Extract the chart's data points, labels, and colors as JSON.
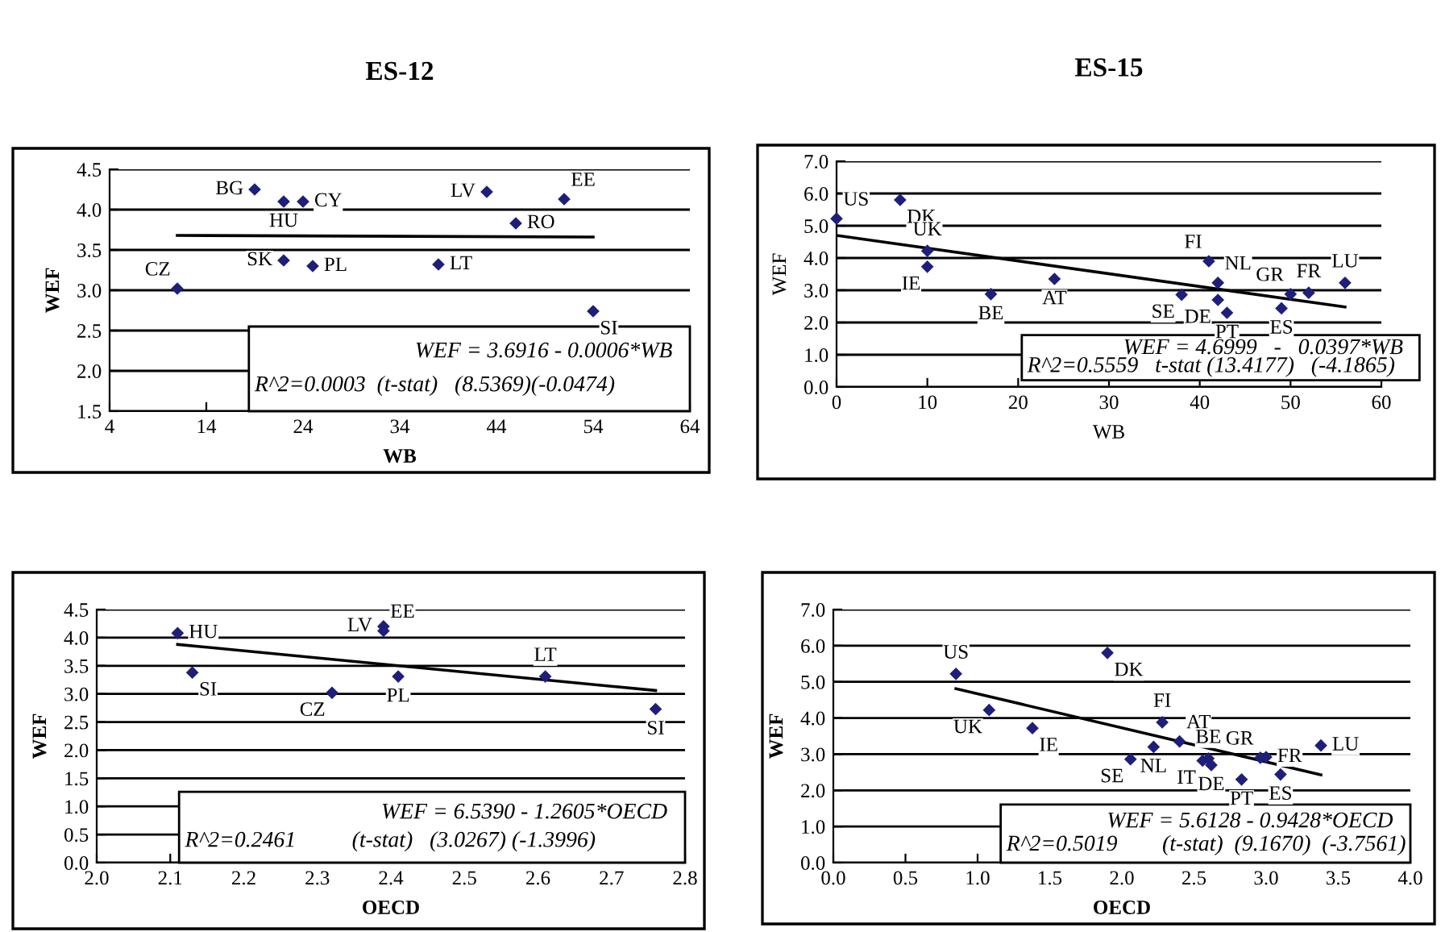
{
  "chart_data": [
    {
      "type": "scatter",
      "title": "ES-12",
      "xlabel": "WB",
      "ylabel": "WEF",
      "grid": "y",
      "legend": false,
      "xlim": [
        4,
        64
      ],
      "xticks": [
        4,
        14,
        24,
        34,
        44,
        54,
        64
      ],
      "ylim": [
        1.5,
        4.5
      ],
      "yticks": [
        1.5,
        {
          "value": 2,
          "label": "2.0"
        },
        2.5,
        {
          "value": 3,
          "label": "3.0"
        },
        3.5,
        {
          "value": 4,
          "label": "4.0"
        },
        4.5
      ],
      "series": [
        {
          "type": "scatter",
          "marker": "diamond",
          "color": "#1f1f7a",
          "x": [
            19,
            22,
            24,
            43,
            51,
            46,
            22,
            25,
            38,
            11,
            54
          ],
          "values": [
            4.25,
            4.1,
            4.1,
            4.22,
            4.13,
            3.83,
            3.37,
            3.3,
            3.32,
            3.02,
            2.74
          ]
        },
        {
          "type": "line",
          "color": "#000000",
          "x": [
            11,
            54
          ],
          "values": [
            3.68,
            3.66
          ]
        }
      ],
      "annotations": [
        {
          "text": "BG",
          "x": 19,
          "y": 4.25
        },
        {
          "text": "HU",
          "x": 22,
          "y": 4.1
        },
        {
          "text": "CY",
          "x": 24,
          "y": 4.1
        },
        {
          "text": "LV",
          "x": 43,
          "y": 4.22
        },
        {
          "text": "EE",
          "x": 51,
          "y": 4.13
        },
        {
          "text": "RO",
          "x": 46,
          "y": 3.83
        },
        {
          "text": "SK",
          "x": 22,
          "y": 3.37
        },
        {
          "text": "PL",
          "x": 25,
          "y": 3.3
        },
        {
          "text": "LT",
          "x": 38,
          "y": 3.32
        },
        {
          "text": "CZ",
          "x": 11,
          "y": 3.02
        },
        {
          "text": "SI",
          "x": 54,
          "y": 2.74
        },
        "WEF = 3.6916 - 0.0006*WB",
        "R^2=0.0003  (t-stat)   (8.5369)(-0.0474)"
      ]
    },
    {
      "type": "scatter",
      "title": "ES-15",
      "xlabel": "WB",
      "ylabel": "WEF",
      "grid": "y",
      "legend": false,
      "xlim": [
        0,
        60
      ],
      "xticks": [
        0,
        10,
        20,
        30,
        40,
        50,
        60
      ],
      "ylim": [
        0,
        7
      ],
      "yticks": [
        {
          "value": 0,
          "label": "0.0"
        },
        {
          "value": 1,
          "label": "1.0"
        },
        {
          "value": 2,
          "label": "2.0"
        },
        {
          "value": 3,
          "label": "3.0"
        },
        {
          "value": 4,
          "label": "4.0"
        },
        {
          "value": 5,
          "label": "5.0"
        },
        {
          "value": 6,
          "label": "6.0"
        },
        {
          "value": 7,
          "label": "7.0"
        }
      ],
      "series": [
        {
          "type": "scatter",
          "marker": "diamond",
          "color": "#1f1f7a",
          "x": [
            0,
            7,
            10,
            10,
            17,
            24,
            38,
            41,
            42,
            42,
            43,
            49,
            50,
            52,
            56
          ],
          "values": [
            5.22,
            5.8,
            4.22,
            3.73,
            2.88,
            3.35,
            2.86,
            3.9,
            3.23,
            2.7,
            2.3,
            2.44,
            2.88,
            2.92,
            3.23
          ]
        },
        {
          "type": "line",
          "color": "#000000",
          "x": [
            0,
            56
          ],
          "values": [
            4.7,
            2.48
          ]
        }
      ],
      "annotations": [
        {
          "text": "US",
          "x": 0,
          "y": 5.22
        },
        {
          "text": "DK",
          "x": 7,
          "y": 5.8
        },
        {
          "text": "UK",
          "x": 10,
          "y": 4.22
        },
        {
          "text": "IE",
          "x": 10,
          "y": 3.73
        },
        {
          "text": "BE",
          "x": 17,
          "y": 2.88
        },
        {
          "text": "AT",
          "x": 24,
          "y": 3.35
        },
        {
          "text": "SE",
          "x": 38,
          "y": 2.86
        },
        {
          "text": "FI",
          "x": 41,
          "y": 3.9
        },
        {
          "text": "NL",
          "x": 42,
          "y": 3.23
        },
        {
          "text": "DE",
          "x": 42,
          "y": 2.7
        },
        {
          "text": "PT",
          "x": 43,
          "y": 2.3
        },
        {
          "text": "ES",
          "x": 49,
          "y": 2.44
        },
        {
          "text": "GR",
          "x": 50,
          "y": 2.88
        },
        {
          "text": "FR",
          "x": 52,
          "y": 2.92
        },
        {
          "text": "LU",
          "x": 56,
          "y": 3.23
        },
        "WEF = 4.6999   -   0.0397*WB",
        "R^2=0.5559   t-stat (13.4177)   (-4.1865)"
      ]
    },
    {
      "type": "scatter",
      "xlabel": "OECD",
      "ylabel": "WEF",
      "grid": "y",
      "legend": false,
      "xlim": [
        2.0,
        2.8
      ],
      "xticks": [
        {
          "value": 2,
          "label": "2.0"
        },
        2.1,
        2.2,
        2.3,
        2.4,
        2.5,
        2.6,
        2.7,
        2.8
      ],
      "ylim": [
        0,
        4.5
      ],
      "yticks": [
        {
          "value": 0,
          "label": "0.0"
        },
        0.5,
        {
          "value": 1,
          "label": "1.0"
        },
        1.5,
        {
          "value": 2,
          "label": "2.0"
        },
        2.5,
        {
          "value": 3,
          "label": "3.0"
        },
        3.5,
        {
          "value": 4,
          "label": "4.0"
        },
        4.5
      ],
      "series": [
        {
          "type": "scatter",
          "marker": "diamond",
          "color": "#1f1f7a",
          "x": [
            2.11,
            2.13,
            2.39,
            2.39,
            2.32,
            2.41,
            2.61,
            2.76
          ],
          "values": [
            4.08,
            3.38,
            4.2,
            4.12,
            3.02,
            3.31,
            3.31,
            2.73
          ]
        },
        {
          "type": "line",
          "color": "#000000",
          "x": [
            2.11,
            2.76
          ],
          "values": [
            3.88,
            3.06
          ]
        }
      ],
      "annotations": [
        {
          "text": "HU",
          "x": 2.11,
          "y": 4.08
        },
        {
          "text": "SI",
          "x": 2.13,
          "y": 3.38
        },
        {
          "text": "LV",
          "x": 2.39,
          "y": 4.2
        },
        {
          "text": "EE",
          "x": 2.39,
          "y": 4.12
        },
        {
          "text": "CZ",
          "x": 2.32,
          "y": 3.02
        },
        {
          "text": "PL",
          "x": 2.41,
          "y": 3.31
        },
        {
          "text": "LT",
          "x": 2.61,
          "y": 3.31
        },
        {
          "text": "SI",
          "x": 2.76,
          "y": 2.73
        },
        "WEF = 6.5390 - 1.2605*OECD",
        "R^2=0.2461          (t-stat)   (3.0267) (-1.3996)"
      ]
    },
    {
      "type": "scatter",
      "xlabel": "OECD",
      "ylabel": "WEF",
      "grid": "y",
      "legend": false,
      "xlim": [
        0,
        4
      ],
      "xticks": [
        {
          "value": 0,
          "label": "0.0"
        },
        0.5,
        {
          "value": 1,
          "label": "1.0"
        },
        1.5,
        {
          "value": 2,
          "label": "2.0"
        },
        2.5,
        {
          "value": 3,
          "label": "3.0"
        },
        3.5,
        {
          "value": 4,
          "label": "4.0"
        }
      ],
      "ylim": [
        0,
        7
      ],
      "yticks": [
        {
          "value": 0,
          "label": "0.0"
        },
        {
          "value": 1,
          "label": "1.0"
        },
        {
          "value": 2,
          "label": "2.0"
        },
        {
          "value": 3,
          "label": "3.0"
        },
        {
          "value": 4,
          "label": "4.0"
        },
        {
          "value": 5,
          "label": "5.0"
        },
        {
          "value": 6,
          "label": "6.0"
        },
        {
          "value": 7,
          "label": "7.0"
        }
      ],
      "series": [
        {
          "type": "scatter",
          "marker": "diamond",
          "color": "#1f1f7a",
          "x": [
            0.85,
            1.9,
            1.08,
            1.38,
            2.28,
            2.4,
            2.22,
            2.06,
            2.56,
            2.6,
            2.62,
            2.96,
            3.0,
            3.1,
            2.83,
            3.38
          ],
          "values": [
            5.22,
            5.8,
            4.22,
            3.72,
            3.88,
            3.35,
            3.2,
            2.86,
            2.82,
            2.88,
            2.7,
            2.9,
            2.92,
            2.44,
            2.3,
            3.24
          ]
        },
        {
          "type": "line",
          "color": "#000000",
          "x": [
            0.85,
            3.38
          ],
          "values": [
            4.81,
            2.43
          ]
        }
      ],
      "annotations": [
        {
          "text": "US",
          "x": 0.85,
          "y": 5.22
        },
        {
          "text": "DK",
          "x": 1.9,
          "y": 5.8
        },
        {
          "text": "UK",
          "x": 1.08,
          "y": 4.22
        },
        {
          "text": "IE",
          "x": 1.38,
          "y": 3.72
        },
        {
          "text": "FI",
          "x": 2.28,
          "y": 3.88
        },
        {
          "text": "AT",
          "x": 2.4,
          "y": 3.35
        },
        {
          "text": "NL",
          "x": 2.22,
          "y": 3.2
        },
        {
          "text": "SE",
          "x": 2.06,
          "y": 2.86
        },
        {
          "text": "IT",
          "x": 2.56,
          "y": 2.82
        },
        {
          "text": "BE",
          "x": 2.6,
          "y": 2.88
        },
        {
          "text": "DE",
          "x": 2.62,
          "y": 2.7
        },
        {
          "text": "GR",
          "x": 2.96,
          "y": 2.9
        },
        {
          "text": "FR",
          "x": 3.0,
          "y": 2.92
        },
        {
          "text": "ES",
          "x": 3.1,
          "y": 2.44
        },
        {
          "text": "PT",
          "x": 2.83,
          "y": 2.3
        },
        {
          "text": "LU",
          "x": 3.38,
          "y": 3.24
        },
        "WEF = 5.6128 - 0.9428*OECD",
        "R^2=0.5019        (t-stat)  (9.1670)  (-3.7561)"
      ]
    }
  ]
}
